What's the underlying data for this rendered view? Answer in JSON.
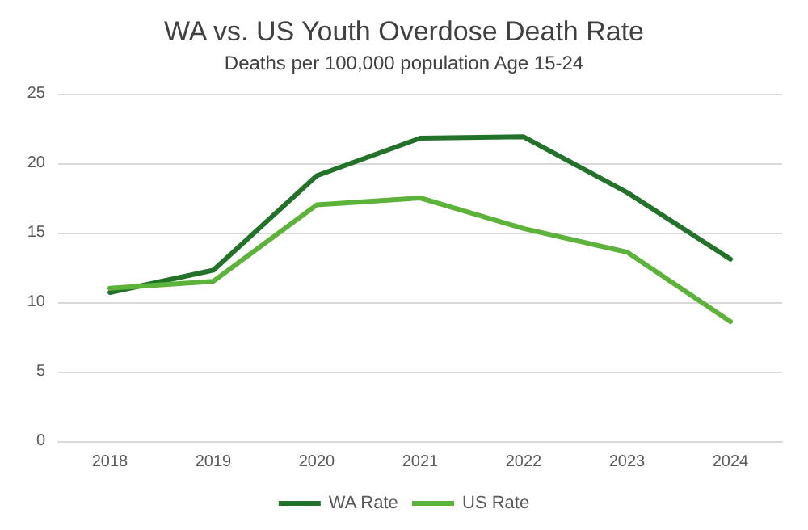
{
  "chart_data": {
    "type": "line",
    "title": "WA vs. US Youth Overdose Death Rate",
    "subtitle": "Deaths per 100,000 population Age 15-24",
    "categories": [
      "2018",
      "2019",
      "2020",
      "2021",
      "2022",
      "2023",
      "2024"
    ],
    "series": [
      {
        "name": "WA Rate",
        "color": "#22722a",
        "values": [
          10.7,
          12.3,
          19.1,
          21.8,
          21.9,
          17.9,
          13.1
        ]
      },
      {
        "name": "US Rate",
        "color": "#5cb33a",
        "values": [
          11.0,
          11.5,
          17.0,
          17.5,
          15.3,
          13.6,
          8.6
        ]
      }
    ],
    "ylim": [
      0,
      25
    ],
    "yticks": [
      0,
      5,
      10,
      15,
      20,
      25
    ],
    "grid": "y",
    "legend": "bottom",
    "marker": "none",
    "line_style": "solid"
  }
}
